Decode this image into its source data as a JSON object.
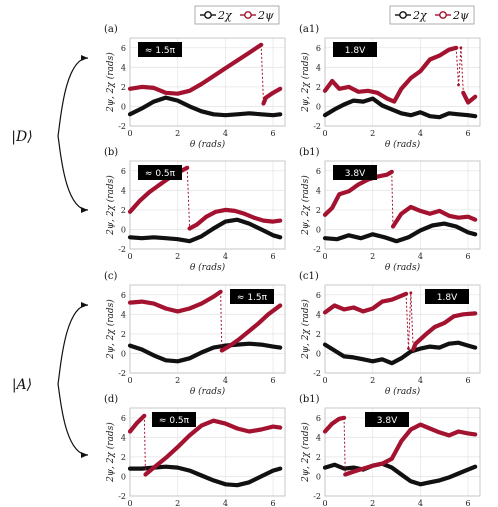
{
  "colors": {
    "chi": "#111111",
    "psi": "#a3122f",
    "grid": "#e6e6e6",
    "frame": "#bdbdbd",
    "badge": "#000000"
  },
  "legends": [
    {
      "col": 0,
      "items": [
        {
          "label": "2χ",
          "color": "#111111"
        },
        {
          "label": "2ψ",
          "color": "#a3122f"
        }
      ]
    },
    {
      "col": 1,
      "items": [
        {
          "label": "2χ",
          "color": "#111111"
        },
        {
          "label": "2ψ",
          "color": "#a3122f"
        }
      ]
    }
  ],
  "state_labels": [
    {
      "text": "|D⟩",
      "group": 0
    },
    {
      "text": "|A⟩",
      "group": 1
    }
  ],
  "chart_data": [
    {
      "type": "line",
      "panel": "(a)",
      "badge": "≈ 1.5π",
      "xlabel": "θ (rads)",
      "ylabel": "2ψ, 2χ (rads)",
      "xlim": [
        0,
        6.5
      ],
      "ylim": [
        -2,
        7
      ],
      "xticks": [
        0,
        2,
        4,
        6
      ],
      "yticks": [
        -2,
        0,
        2,
        4,
        6
      ],
      "grid": true,
      "series": [
        {
          "name": "2χ",
          "x": [
            0,
            0.5,
            1.0,
            1.5,
            2.0,
            2.5,
            3.0,
            3.5,
            4.0,
            4.5,
            5.0,
            5.5,
            6.0,
            6.3
          ],
          "y": [
            -0.8,
            -0.2,
            0.5,
            0.9,
            0.6,
            0.0,
            -0.5,
            -0.8,
            -0.9,
            -0.8,
            -0.7,
            -0.8,
            -0.9,
            -0.8
          ]
        },
        {
          "name": "2ψ",
          "x": [
            0,
            0.5,
            1.0,
            1.5,
            2.0,
            2.5,
            3.0,
            3.5,
            4.0,
            4.5,
            5.0,
            5.5,
            5.6,
            5.7,
            6.0,
            6.3
          ],
          "y": [
            1.8,
            2.0,
            1.9,
            1.4,
            1.3,
            1.6,
            2.3,
            3.1,
            3.9,
            4.7,
            5.5,
            6.3,
            0.3,
            0.9,
            1.4,
            1.8
          ]
        }
      ]
    },
    {
      "type": "line",
      "panel": "(a1)",
      "badge": "1.8V",
      "xlabel": "θ (rads)",
      "ylabel": "2ψ, 2χ (rads)",
      "xlim": [
        0,
        6.5
      ],
      "ylim": [
        -2,
        7
      ],
      "xticks": [
        0,
        2,
        4,
        6
      ],
      "yticks": [
        -2,
        0,
        2,
        4,
        6
      ],
      "grid": true,
      "series": [
        {
          "name": "2χ",
          "x": [
            0,
            0.4,
            0.8,
            1.2,
            1.6,
            2.0,
            2.4,
            2.8,
            3.2,
            3.6,
            4.0,
            4.4,
            4.8,
            5.2,
            5.6,
            6.0,
            6.3
          ],
          "y": [
            -0.9,
            -0.3,
            0.2,
            0.6,
            0.5,
            0.8,
            0.1,
            -0.3,
            -0.7,
            -0.9,
            -0.6,
            -1.0,
            -1.1,
            -0.7,
            -0.8,
            -0.9,
            -1.0
          ]
        },
        {
          "name": "2ψ",
          "x": [
            0,
            0.3,
            0.6,
            1.0,
            1.4,
            1.8,
            2.2,
            2.6,
            2.9,
            3.2,
            3.6,
            4.0,
            4.4,
            4.8,
            5.2,
            5.5,
            5.6,
            5.7,
            5.8,
            6.0,
            6.3
          ],
          "y": [
            1.6,
            2.6,
            1.8,
            2.0,
            1.5,
            1.6,
            1.4,
            0.8,
            0.5,
            1.8,
            2.9,
            3.6,
            4.8,
            5.2,
            5.8,
            6.0,
            2.2,
            6.0,
            1.4,
            0.4,
            1.0
          ]
        }
      ]
    },
    {
      "type": "line",
      "panel": "(b)",
      "badge": "≈ 0.5π",
      "xlabel": "θ (rads)",
      "ylabel": "2ψ, 2χ (rads)",
      "xlim": [
        0,
        6.5
      ],
      "ylim": [
        -2,
        7
      ],
      "xticks": [
        0,
        2,
        4,
        6
      ],
      "yticks": [
        -2,
        0,
        2,
        4,
        6
      ],
      "grid": true,
      "series": [
        {
          "name": "2χ",
          "x": [
            0,
            0.5,
            1.0,
            1.5,
            2.0,
            2.5,
            3.0,
            3.5,
            4.0,
            4.5,
            5.0,
            5.5,
            6.0,
            6.3
          ],
          "y": [
            -0.8,
            -0.9,
            -0.8,
            -0.9,
            -1.0,
            -1.2,
            -0.7,
            0.1,
            0.8,
            1.0,
            0.6,
            0.0,
            -0.6,
            -0.8
          ]
        },
        {
          "name": "2ψ",
          "x": [
            0,
            0.4,
            0.8,
            1.2,
            1.6,
            2.0,
            2.4,
            2.5,
            2.8,
            3.2,
            3.6,
            4.0,
            4.4,
            4.8,
            5.2,
            5.6,
            6.0,
            6.3
          ],
          "y": [
            1.8,
            2.9,
            3.8,
            4.5,
            5.2,
            5.8,
            6.3,
            0.1,
            0.5,
            1.3,
            1.8,
            2.0,
            1.9,
            1.6,
            1.2,
            0.9,
            0.8,
            0.9
          ]
        }
      ]
    },
    {
      "type": "line",
      "panel": "(b1)",
      "badge": "3.8V",
      "xlabel": "θ (rads)",
      "ylabel": "2ψ, 2χ (rads)",
      "xlim": [
        0,
        6.5
      ],
      "ylim": [
        -2,
        7
      ],
      "xticks": [
        0,
        2,
        4,
        6
      ],
      "yticks": [
        -2,
        0,
        2,
        4,
        6
      ],
      "grid": true,
      "series": [
        {
          "name": "2χ",
          "x": [
            0,
            0.5,
            1.0,
            1.5,
            2.0,
            2.5,
            3.0,
            3.5,
            4.0,
            4.5,
            5.0,
            5.5,
            6.0,
            6.3
          ],
          "y": [
            -0.9,
            -1.0,
            -0.6,
            -0.9,
            -0.5,
            -0.8,
            -1.2,
            -0.8,
            -0.1,
            0.4,
            0.6,
            0.3,
            -0.3,
            -0.5
          ]
        },
        {
          "name": "2ψ",
          "x": [
            0,
            0.3,
            0.6,
            1.0,
            1.4,
            1.8,
            2.2,
            2.6,
            2.8,
            2.85,
            3.2,
            3.6,
            4.0,
            4.4,
            4.8,
            5.2,
            5.6,
            6.0,
            6.3
          ],
          "y": [
            1.5,
            2.2,
            3.6,
            3.9,
            4.6,
            5.1,
            5.4,
            5.6,
            5.9,
            0.3,
            1.6,
            2.3,
            1.9,
            1.6,
            1.9,
            1.4,
            1.2,
            1.3,
            1.0
          ]
        }
      ]
    },
    {
      "type": "line",
      "panel": "(c)",
      "badge": "≈ 1.5π",
      "xlabel": "θ (rads)",
      "ylabel": "2ψ, 2χ (rads)",
      "xlim": [
        0,
        6.5
      ],
      "ylim": [
        -2,
        7
      ],
      "xticks": [
        0,
        2,
        4,
        6
      ],
      "yticks": [
        -2,
        0,
        2,
        4,
        6
      ],
      "grid": true,
      "series": [
        {
          "name": "2χ",
          "x": [
            0,
            0.5,
            1.0,
            1.5,
            2.0,
            2.5,
            3.0,
            3.5,
            4.0,
            4.5,
            5.0,
            5.5,
            6.0,
            6.3
          ],
          "y": [
            0.8,
            0.4,
            -0.2,
            -0.7,
            -0.8,
            -0.5,
            0.1,
            0.6,
            0.8,
            0.9,
            1.0,
            0.9,
            0.7,
            0.6
          ]
        },
        {
          "name": "2ψ",
          "x": [
            0,
            0.5,
            1.0,
            1.5,
            2.0,
            2.5,
            3.0,
            3.5,
            3.8,
            3.85,
            4.2,
            4.6,
            5.0,
            5.4,
            5.8,
            6.3
          ],
          "y": [
            5.2,
            5.3,
            5.1,
            4.6,
            4.3,
            4.6,
            5.1,
            5.8,
            6.3,
            0.3,
            0.8,
            1.5,
            2.3,
            3.1,
            4.0,
            4.9
          ]
        }
      ]
    },
    {
      "type": "line",
      "panel": "(c1)",
      "badge": "1.8V",
      "xlabel": "θ (rads)",
      "ylabel": "2ψ, 2χ (rads)",
      "xlim": [
        0,
        6.5
      ],
      "ylim": [
        -2,
        7
      ],
      "xticks": [
        0,
        2,
        4,
        6
      ],
      "yticks": [
        -2,
        0,
        2,
        4,
        6
      ],
      "grid": true,
      "series": [
        {
          "name": "2χ",
          "x": [
            0,
            0.4,
            0.8,
            1.2,
            1.6,
            2.0,
            2.4,
            2.8,
            3.2,
            3.6,
            4.0,
            4.4,
            4.8,
            5.2,
            5.6,
            6.0,
            6.3
          ],
          "y": [
            0.9,
            0.3,
            -0.3,
            -0.4,
            -0.6,
            -0.8,
            -0.6,
            -1.0,
            -0.5,
            0.2,
            0.5,
            0.7,
            0.6,
            1.0,
            1.1,
            0.8,
            0.6
          ]
        },
        {
          "name": "2ψ",
          "x": [
            0,
            0.4,
            0.8,
            1.2,
            1.6,
            2.0,
            2.4,
            2.8,
            3.2,
            3.4,
            3.5,
            3.6,
            3.7,
            3.8,
            4.2,
            4.6,
            5.0,
            5.4,
            5.8,
            6.3
          ],
          "y": [
            4.2,
            4.9,
            4.5,
            4.7,
            4.3,
            4.6,
            5.3,
            5.5,
            5.9,
            6.1,
            0.5,
            6.2,
            0.4,
            1.0,
            1.9,
            2.7,
            3.1,
            3.8,
            4.0,
            4.1
          ]
        }
      ]
    },
    {
      "type": "line",
      "panel": "(d)",
      "badge": "≈ 0.5π",
      "xlabel": "θ (rads)",
      "ylabel": "2ψ, 2χ (rads)",
      "xlim": [
        0,
        6.5
      ],
      "ylim": [
        -2,
        7
      ],
      "xticks": [
        0,
        2,
        4,
        6
      ],
      "yticks": [
        -2,
        0,
        2,
        4,
        6
      ],
      "grid": true,
      "series": [
        {
          "name": "2χ",
          "x": [
            0,
            0.5,
            1.0,
            1.5,
            2.0,
            2.5,
            3.0,
            3.5,
            4.0,
            4.5,
            5.0,
            5.5,
            6.0,
            6.3
          ],
          "y": [
            0.8,
            0.8,
            0.9,
            1.0,
            0.9,
            0.6,
            0.1,
            -0.4,
            -0.8,
            -0.9,
            -0.6,
            0.0,
            0.6,
            0.8
          ]
        },
        {
          "name": "2ψ",
          "x": [
            0,
            0.3,
            0.6,
            0.65,
            1.0,
            1.5,
            2.0,
            2.5,
            3.0,
            3.5,
            4.0,
            4.5,
            5.0,
            5.5,
            6.0,
            6.3
          ],
          "y": [
            4.6,
            5.5,
            6.2,
            0.2,
            0.9,
            1.9,
            3.0,
            4.2,
            5.2,
            5.7,
            5.4,
            4.9,
            4.6,
            4.8,
            5.1,
            5.0
          ]
        }
      ]
    },
    {
      "type": "line",
      "panel": "(b1)",
      "badge": "3.8V",
      "xlabel": "θ (rads)",
      "ylabel": "2ψ, 2χ (rads)",
      "xlim": [
        0,
        6.5
      ],
      "ylim": [
        -2,
        7
      ],
      "xticks": [
        0,
        2,
        4,
        6
      ],
      "yticks": [
        -2,
        0,
        2,
        4,
        6
      ],
      "grid": true,
      "series": [
        {
          "name": "2χ",
          "x": [
            0,
            0.4,
            0.8,
            1.2,
            1.6,
            2.0,
            2.4,
            2.8,
            3.2,
            3.6,
            4.0,
            4.4,
            4.8,
            5.2,
            5.6,
            6.0,
            6.3
          ],
          "y": [
            0.9,
            1.2,
            0.8,
            0.9,
            0.7,
            1.1,
            1.3,
            0.9,
            0.2,
            -0.5,
            -0.8,
            -0.6,
            -0.4,
            -0.1,
            0.3,
            0.7,
            1.0
          ]
        },
        {
          "name": "2ψ",
          "x": [
            0,
            0.3,
            0.6,
            0.8,
            0.85,
            1.2,
            1.6,
            2.0,
            2.4,
            2.8,
            3.2,
            3.6,
            4.0,
            4.4,
            4.8,
            5.2,
            5.6,
            6.0,
            6.3
          ],
          "y": [
            4.6,
            5.4,
            5.9,
            6.0,
            0.2,
            0.5,
            0.8,
            1.1,
            1.3,
            1.8,
            3.6,
            4.8,
            5.3,
            4.9,
            4.5,
            4.2,
            4.6,
            4.4,
            4.3
          ]
        }
      ]
    }
  ]
}
